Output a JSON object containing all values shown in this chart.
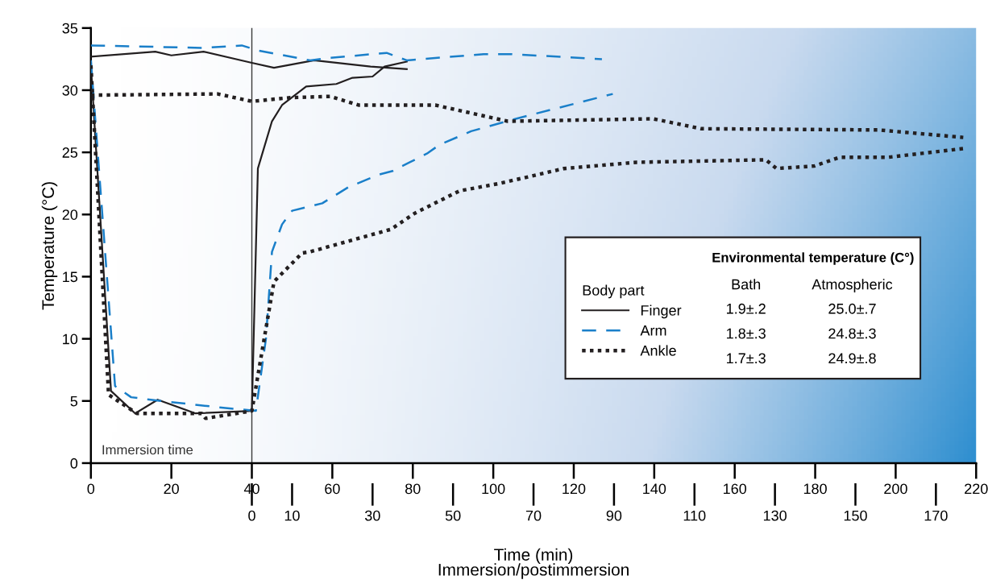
{
  "chart_data": {
    "type": "line",
    "xlabel": "Time (min)\nImmersion/postimmersion",
    "ylabel": "Temperature (°C)",
    "legend_title": "Body part",
    "legend": "right",
    "grid": false,
    "xlim": [
      0,
      220
    ],
    "xticks": [
      0,
      20,
      40,
      60,
      80,
      100,
      120,
      140,
      160,
      180,
      200,
      220
    ],
    "x2lim": [
      -40,
      180
    ],
    "x2ticks": [
      0,
      10,
      30,
      50,
      70,
      90,
      110,
      130,
      150,
      170
    ],
    "ylim": [
      0,
      35
    ],
    "yticks": [
      0,
      5,
      10,
      15,
      20,
      25,
      30,
      35
    ],
    "ref_lines": [
      {
        "axis": "x",
        "value": 40,
        "label": null,
        "color": "#3a3a3a",
        "line_style": "solid"
      }
    ],
    "annotations": [
      "Immersion time",
      "Environmental temperature (C°)",
      "Bath",
      "Atmospheric",
      "1.9±.2",
      "25.0±.7",
      "1.8±.3",
      "24.8±.3",
      "1.7±.3",
      "24.9±.8"
    ],
    "series": [
      {
        "name": "Finger",
        "color": "#231f20",
        "line_style": "solid",
        "x": [
          0,
          5,
          11,
          16.6,
          26,
          40,
          41.5,
          45,
          47.5,
          53.5,
          61,
          65,
          70,
          73,
          78.5
        ],
        "values": [
          32.0,
          5.8,
          4.0,
          5.1,
          4.0,
          4.2,
          23.7,
          27.5,
          28.8,
          30.3,
          30.5,
          31.0,
          31.1,
          31.9,
          32.3
        ]
      },
      {
        "name": "Arm",
        "color": "#1a7fc9",
        "line_style": "dashed",
        "x": [
          0,
          6,
          10,
          17.4,
          31.5,
          41,
          43.5,
          45,
          47.5,
          50,
          57.5,
          64,
          71.5,
          75,
          83.5,
          86.6,
          94.5,
          105.6,
          129.7
        ],
        "values": [
          32.4,
          6.2,
          5.3,
          5.0,
          4.5,
          4.2,
          10.0,
          17.0,
          19.2,
          20.3,
          20.9,
          22.2,
          23.2,
          23.5,
          24.9,
          25.6,
          26.7,
          27.7,
          29.7
        ]
      },
      {
        "name": "Ankle",
        "color": "#231f20",
        "line_style": "dotted",
        "x": [
          0,
          4.4,
          11.4,
          27.5,
          28.5,
          40,
          45.5,
          52.5,
          54.5,
          74.5,
          80.5,
          91.6,
          101.6,
          117.6,
          135.7,
          167.7,
          170.4,
          179.8,
          186,
          198,
          216.8
        ],
        "values": [
          32.0,
          5.5,
          4.0,
          4.0,
          3.6,
          4.2,
          14.6,
          16.9,
          17.0,
          18.8,
          20.1,
          21.9,
          22.5,
          23.7,
          24.2,
          24.4,
          23.7,
          23.9,
          24.6,
          24.6,
          25.3
        ]
      },
      {
        "color": "#231f20",
        "line_style": "solid",
        "x": [
          0,
          16,
          20,
          28,
          40,
          45.5,
          55.5,
          69.5,
          78.5
        ],
        "values": [
          32.7,
          33.1,
          32.8,
          33.1,
          32.2,
          31.8,
          32.4,
          31.9,
          31.7
        ]
      },
      {
        "color": "#1a7fc9",
        "line_style": "dashed",
        "x": [
          0,
          28,
          37.5,
          41.5,
          54.5,
          59.5,
          73.5,
          78.5,
          97.6,
          104.6,
          127
        ],
        "values": [
          33.6,
          33.4,
          33.6,
          33.2,
          32.4,
          32.6,
          33.0,
          32.4,
          32.9,
          32.9,
          32.5
        ]
      },
      {
        "color": "#231f20",
        "line_style": "dotted",
        "x": [
          0,
          31.5,
          40,
          49.5,
          59.5,
          66.5,
          85.6,
          103.6,
          139.7,
          151.7,
          195.8,
          216.8
        ],
        "values": [
          29.6,
          29.7,
          29.1,
          29.4,
          29.5,
          28.8,
          28.8,
          27.5,
          27.7,
          26.9,
          26.8,
          26.2
        ]
      }
    ]
  }
}
